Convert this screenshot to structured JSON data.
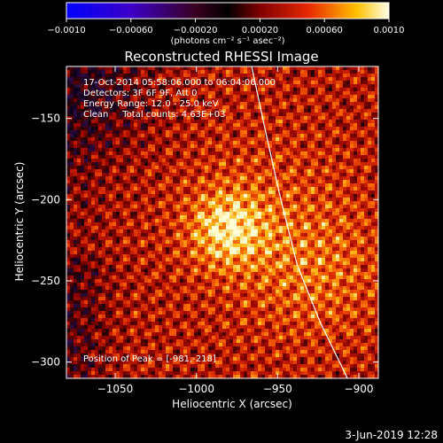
{
  "chart_data": {
    "type": "heatmap",
    "title": "Reconstructed RHESSI Image",
    "xlabel": "Heliocentric X (arcsec)",
    "ylabel": "Heliocentric Y (arcsec)",
    "xlim": [
      -1080,
      -888
    ],
    "ylim": [
      -310,
      -118
    ],
    "x_ticks": [
      -1050,
      -1000,
      -950,
      -900
    ],
    "x_tick_labels": [
      "−1050",
      "−1000",
      "−950",
      "−900"
    ],
    "y_ticks": [
      -150,
      -200,
      -250,
      -300
    ],
    "y_tick_labels": [
      "−150",
      "−200",
      "−250",
      "−300"
    ],
    "colorbar": {
      "range": [
        -0.001,
        0.001
      ],
      "ticks": [
        -0.001,
        -0.0006,
        -0.0002,
        0.0002,
        0.0006,
        0.001
      ],
      "tick_labels": [
        "−0.0010",
        "−0.00060",
        "−0.00020",
        "0.00020",
        "0.00060",
        "0.0010"
      ],
      "unit_label": "(photons cm⁻² s⁻¹ asec⁻²)"
    },
    "peak": [
      -981,
      -218
    ],
    "limb_line": [
      [
        -966,
        -118
      ],
      [
        -957,
        -160
      ],
      [
        -948,
        -200
      ],
      [
        -938,
        -240
      ],
      [
        -924,
        -275
      ],
      [
        -907,
        -310
      ]
    ],
    "grid": false,
    "legend": "none"
  },
  "annotations": {
    "time_range": "17-Oct-2014 05:58:06.000 to 06:04:06.000",
    "detectors": "Detectors: 3F 6F 9F, Att 0",
    "energy_range": "Energy Range: 12.0 - 25.0 keV",
    "clean_counts": "Clean     Total counts: 4.63E+03",
    "peak_position": "Position of Peak = [-981,-218]"
  },
  "footer": {
    "timestamp": "3-Jun-2019 12:28"
  },
  "colors": {
    "background": "#000000",
    "text": "#ffffff",
    "limb_line": "#ffffff"
  }
}
